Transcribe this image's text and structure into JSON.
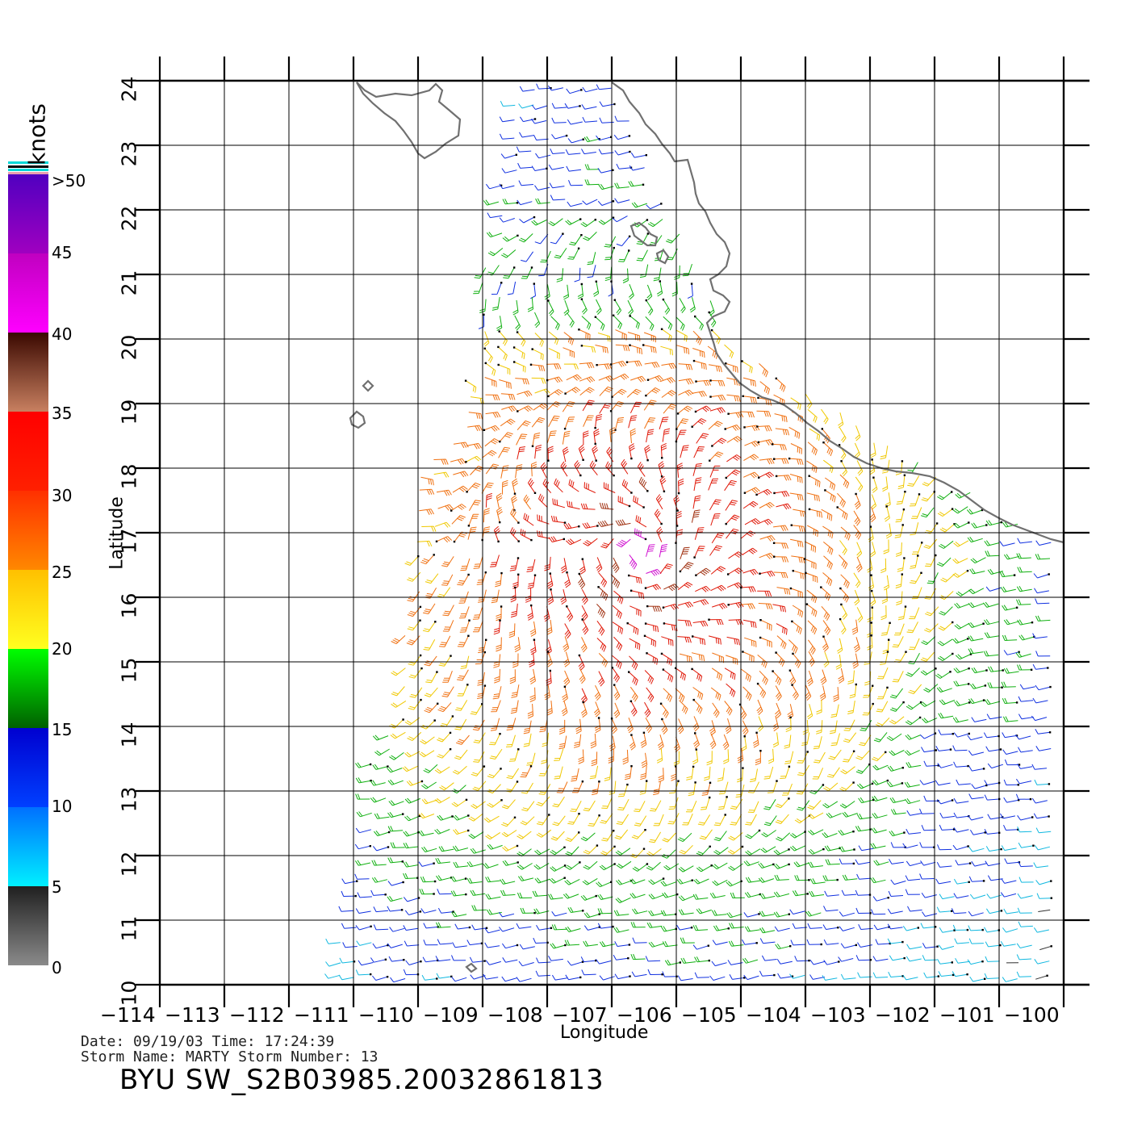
{
  "map": {
    "xlabel": "Longitude",
    "ylabel": "Latitude",
    "lon_ticks": [
      "-114",
      "-113",
      "-112",
      "-111",
      "-110",
      "-109",
      "-108",
      "-107",
      "-106",
      "-105",
      "-104",
      "-103",
      "-102",
      "-101",
      "-100"
    ],
    "lat_ticks": [
      "10",
      "11",
      "12",
      "13",
      "14",
      "15",
      "16",
      "17",
      "18",
      "19",
      "20",
      "21",
      "22",
      "23",
      "24"
    ],
    "lon_range": [
      -114,
      -100
    ],
    "lat_range": [
      10,
      24
    ]
  },
  "colorbar": {
    "unit": "knots",
    "labels": [
      ">50",
      "45",
      "40",
      "35",
      "30",
      "25",
      "20",
      "15",
      "10",
      "5",
      "0"
    ],
    "bands": [
      {
        "range": "0-5",
        "color_from": "#8a8a8a",
        "color_to": "#202020"
      },
      {
        "range": "5-10",
        "color_from": "#00e8ff",
        "color_to": "#0060ff"
      },
      {
        "range": "10-15",
        "color_from": "#0050ff",
        "color_to": "#0000e0"
      },
      {
        "range": "15-20",
        "color_from": "#007000",
        "color_to": "#00ff00"
      },
      {
        "range": "20-25",
        "color_from": "#ffff20",
        "color_to": "#ffc000"
      },
      {
        "range": "25-30",
        "color_from": "#ff8000",
        "color_to": "#ff3000"
      },
      {
        "range": "30-35",
        "color_from": "#ff2000",
        "color_to": "#ff0000"
      },
      {
        "range": "35-40",
        "color_from": "#c87850",
        "color_to": "#3a0a00"
      },
      {
        "range": "40-45",
        "color_from": "#ff00ff",
        "color_to": "#c000c0"
      },
      {
        "range": "45-50",
        "color_from": "#b000c0",
        "color_to": "#6000c0"
      }
    ]
  },
  "info": {
    "line1": "Date: 09/19/03   Time: 17:24:39",
    "line2": "Storm Name: MARTY   Storm Number: 13",
    "title": "BYU SW_S2B03985.20032861813"
  },
  "storm_center": {
    "lon": -106.6,
    "lat": 16.7
  },
  "colors": {
    "coast": "#707070",
    "grid": "#000000"
  }
}
